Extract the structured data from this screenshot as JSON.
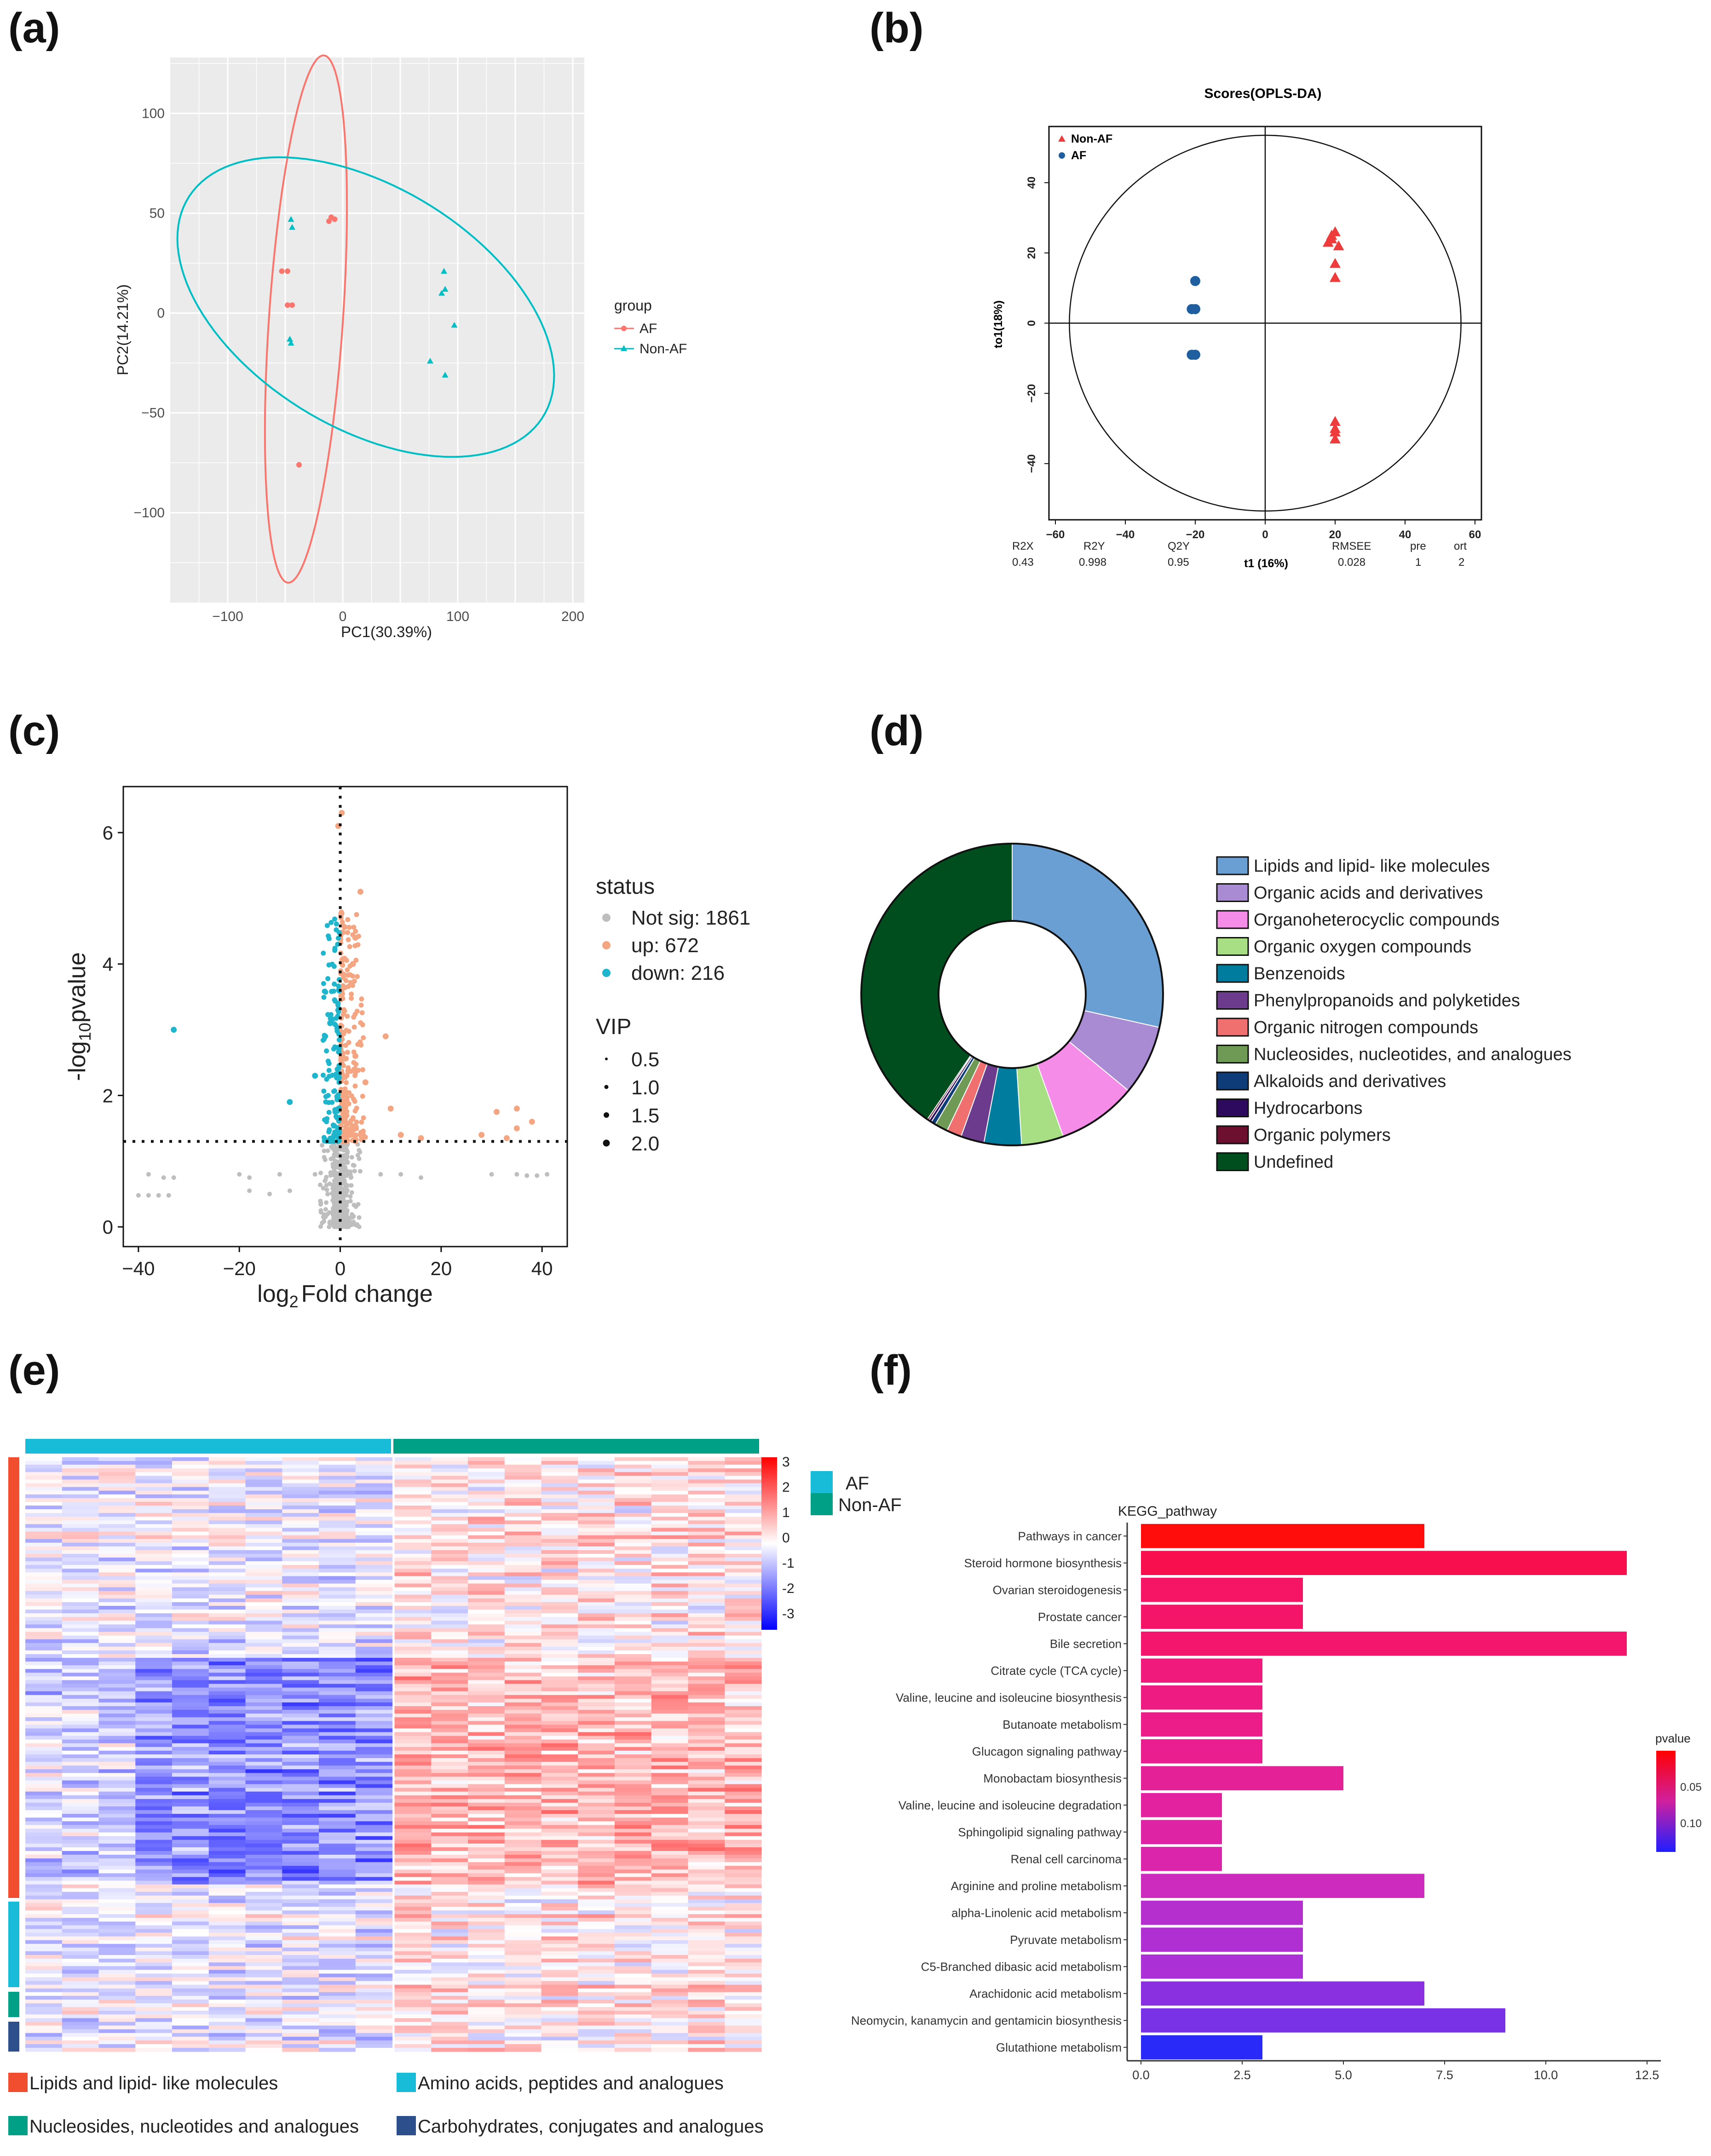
{
  "panel_labels": [
    "(a)",
    "(b)",
    "(c)",
    "(d)",
    "(e)",
    "(f)"
  ],
  "colors": {
    "af": "#F8766D",
    "nonaf": "#00BFC4",
    "opls_red": "#EE3B3B",
    "opls_blue": "#1F5FA0",
    "volcano_up": "#F4A582",
    "volcano_down": "#1FB5CC",
    "volcano_ns": "#BEBEBE",
    "heat_af": "#18BCD8",
    "heat_nonaf": "#00A087"
  },
  "chart_data": [
    {
      "id": "a",
      "type": "scatter",
      "title": "",
      "xlabel": "PC1(30.39%)",
      "ylabel": "PC2(14.21%)",
      "xlim": [
        -150,
        210
      ],
      "ylim": [
        -145,
        128
      ],
      "xticks": [
        -100,
        0,
        100,
        200
      ],
      "yticks": [
        -100,
        -50,
        0,
        50,
        100
      ],
      "legend": {
        "title": "group",
        "items": [
          "AF",
          "Non-AF"
        ],
        "position": "right"
      },
      "series": [
        {
          "name": "AF",
          "marker": "circle",
          "x": [
            -10,
            -7,
            -12,
            -53,
            -48,
            -48,
            -44,
            -38
          ],
          "y": [
            48,
            47,
            46,
            21,
            21,
            4,
            4,
            -76
          ]
        },
        {
          "name": "Non-AF",
          "marker": "triangle",
          "x": [
            -45,
            -44,
            -46,
            -45,
            88,
            86,
            89,
            97,
            76,
            89
          ],
          "y": [
            47,
            43,
            -13,
            -15,
            21,
            10,
            12,
            -6,
            -24,
            -31
          ]
        }
      ],
      "ellipses": [
        {
          "group": "AF",
          "cx": -32,
          "cy": -3,
          "rx": 133,
          "ry": 32,
          "angle_deg": 83
        },
        {
          "group": "Non-AF",
          "cx": 20,
          "cy": 3,
          "rx": 168,
          "ry": 65,
          "angle_deg": -14
        }
      ]
    },
    {
      "id": "b",
      "type": "scatter",
      "title": "Scores(OPLS-DA)",
      "xlabel": "t1 (16%)",
      "ylabel": "to1(18%)",
      "xlim": [
        -60,
        60
      ],
      "ylim": [
        -56,
        56
      ],
      "xticks": [
        -60,
        -40,
        -20,
        0,
        20,
        40,
        60
      ],
      "yticks": [
        -40,
        -20,
        0,
        20,
        40
      ],
      "legend": {
        "items": [
          "Non-AF",
          "AF"
        ],
        "position": "top-left"
      },
      "series": [
        {
          "name": "Non-AF",
          "marker": "triangle",
          "x": [
            18,
            19,
            20,
            19,
            21,
            20,
            20,
            20,
            20,
            20,
            20
          ],
          "y": [
            23,
            25,
            26,
            24,
            22,
            17,
            13,
            -28,
            -30,
            -31,
            -33
          ]
        },
        {
          "name": "AF",
          "marker": "circle",
          "x": [
            -20,
            -20,
            -21,
            -20,
            -21
          ],
          "y": [
            12,
            4,
            4,
            -9,
            -9
          ]
        }
      ],
      "stats": {
        "headers": [
          "R2X",
          "R2Y",
          "Q2Y",
          "RMSEE",
          "pre",
          "ort"
        ],
        "values": [
          "0.43",
          "0.998",
          "0.95",
          "0.028",
          "1",
          "2"
        ]
      }
    },
    {
      "id": "c",
      "type": "scatter",
      "title": "",
      "xlabel": "log",
      "xlabel_sub": "2",
      "xlabel_rest": "Fold change",
      "ylabel": "-log",
      "ylabel_sub": "10",
      "ylabel_rest": "pvalue",
      "xlim": [
        -43,
        45
      ],
      "ylim": [
        -0.3,
        6.7
      ],
      "xticks": [
        -40,
        -20,
        0,
        20,
        40
      ],
      "yticks": [
        0,
        2,
        4,
        6
      ],
      "threshold_y": 1.3,
      "legend_status": {
        "title": "status",
        "items": [
          "Not sig: 1861",
          "up: 672",
          "down: 216"
        ]
      },
      "legend_vip": {
        "title": "VIP",
        "items": [
          "0.5",
          "1.0",
          "1.5",
          "2.0"
        ]
      },
      "outliers": {
        "up": [
          [
            0.3,
            6.3
          ],
          [
            -0.4,
            6.1
          ],
          [
            4,
            5.1
          ],
          [
            3,
            4.4
          ],
          [
            2.5,
            4.0
          ],
          [
            9,
            2.9
          ],
          [
            3,
            2.6
          ],
          [
            5,
            2.2
          ],
          [
            10,
            1.8
          ],
          [
            31,
            1.75
          ],
          [
            35,
            1.8
          ],
          [
            35,
            1.5
          ],
          [
            38,
            1.6
          ],
          [
            28,
            1.4
          ],
          [
            33,
            1.35
          ],
          [
            16,
            1.35
          ],
          [
            12,
            1.4
          ]
        ],
        "down": [
          [
            -33,
            3.0
          ],
          [
            -10,
            1.9
          ],
          [
            -5,
            2.3
          ],
          [
            -3,
            2.9
          ],
          [
            -2,
            3.1
          ]
        ],
        "notsig": [
          [
            -40,
            0.48
          ],
          [
            -38,
            0.48
          ],
          [
            -36,
            0.48
          ],
          [
            -34,
            0.48
          ],
          [
            -33,
            0.75
          ],
          [
            -35,
            0.75
          ],
          [
            -38,
            0.8
          ],
          [
            -20,
            0.8
          ],
          [
            -18,
            0.75
          ],
          [
            -12,
            0.8
          ],
          [
            -5,
            0.8
          ],
          [
            8,
            0.8
          ],
          [
            12,
            0.8
          ],
          [
            16,
            0.75
          ],
          [
            30,
            0.8
          ],
          [
            35,
            0.8
          ],
          [
            37,
            0.78
          ],
          [
            39,
            0.78
          ],
          [
            41,
            0.8
          ],
          [
            -18,
            0.55
          ],
          [
            -10,
            0.55
          ],
          [
            -14,
            0.5
          ]
        ]
      }
    },
    {
      "id": "d",
      "type": "pie",
      "donut": true,
      "categories": [
        "Lipids and lipid- like molecules",
        "Organic acids and derivatives",
        "Organoheterocyclic  compounds",
        "Organic oxygen compounds",
        "Benzenoids",
        "Phenylpropanoids and polyketides",
        "Organic nitrogen compounds",
        "Nucleosides, nucleotides, and analogues",
        "Alkaloids and derivatives",
        "Hydrocarbons",
        "Organic polymers",
        "Undefined"
      ],
      "values": [
        28.5,
        7.5,
        8.5,
        4.5,
        4.0,
        2.5,
        1.6,
        1.4,
        0.5,
        0.3,
        0.2,
        40.5
      ],
      "slice_colors": [
        "#6A9FD4",
        "#A98BD3",
        "#F48CE8",
        "#A8DE84",
        "#007C9E",
        "#6C3B8E",
        "#F07070",
        "#6E9A55",
        "#0E3C78",
        "#2D0A5E",
        "#6D0F2E",
        "#004D1E"
      ]
    },
    {
      "id": "e",
      "type": "heatmap",
      "groups": [
        "AF",
        "Non-AF"
      ],
      "row_classes": [
        "Lipids and lipid- like molecules",
        "Amino acids, peptides and analogues",
        "Nucleosides, nucleotides and analogues",
        "Carbohydrates, conjugates and analogues"
      ],
      "row_class_colors": [
        "#F04E2F",
        "#18BCD8",
        "#00A087",
        "#2D4F8C"
      ],
      "color_scale": {
        "min": -3,
        "max": 3,
        "ticks": [
          "3",
          "2",
          "1",
          "0",
          "-1",
          "-2",
          "-3"
        ]
      }
    },
    {
      "id": "f",
      "type": "bar",
      "orientation": "horizontal",
      "title": "KEGG_pathway",
      "categories": [
        "Pathways in cancer",
        "Steroid hormone biosynthesis",
        "Ovarian steroidogenesis",
        "Prostate cancer",
        "Bile secretion",
        "Citrate cycle (TCA cycle)",
        "Valine, leucine and isoleucine biosynthesis",
        "Butanoate metabolism",
        "Glucagon signaling pathway",
        "Monobactam biosynthesis",
        "Valine, leucine and isoleucine degradation",
        "Sphingolipid signaling pathway",
        "Renal cell carcinoma",
        "Arginine and proline metabolism",
        "alpha-Linolenic acid metabolism",
        "Pyruvate metabolism",
        "C5-Branched dibasic acid metabolism",
        "Arachidonic acid metabolism",
        "Neomycin, kanamycin and gentamicin biosynthesis",
        "Glutathione metabolism"
      ],
      "values": [
        7,
        12,
        4,
        4,
        12,
        3,
        3,
        3,
        3,
        5,
        2,
        2,
        2,
        7,
        4,
        4,
        4,
        7,
        9,
        3
      ],
      "bar_colors": [
        "#FF0D0D",
        "#F8104E",
        "#F61464",
        "#F51568",
        "#F4166C",
        "#F01A7C",
        "#EE1B82",
        "#EC1D88",
        "#EA1E8E",
        "#E52198",
        "#E2229E",
        "#DE24A4",
        "#DB25AA",
        "#CC2BBE",
        "#B52FCE",
        "#B02FD2",
        "#AB30D5",
        "#8A30E0",
        "#7A32E6",
        "#2A2AF8"
      ],
      "xlim": [
        0,
        12.5
      ],
      "xticks": [
        "0.0",
        "2.5",
        "5.0",
        "7.5",
        "10.0",
        "12.5"
      ],
      "legend": {
        "title": "pvalue",
        "ticks": [
          "0.05",
          "0.10"
        ]
      }
    }
  ]
}
